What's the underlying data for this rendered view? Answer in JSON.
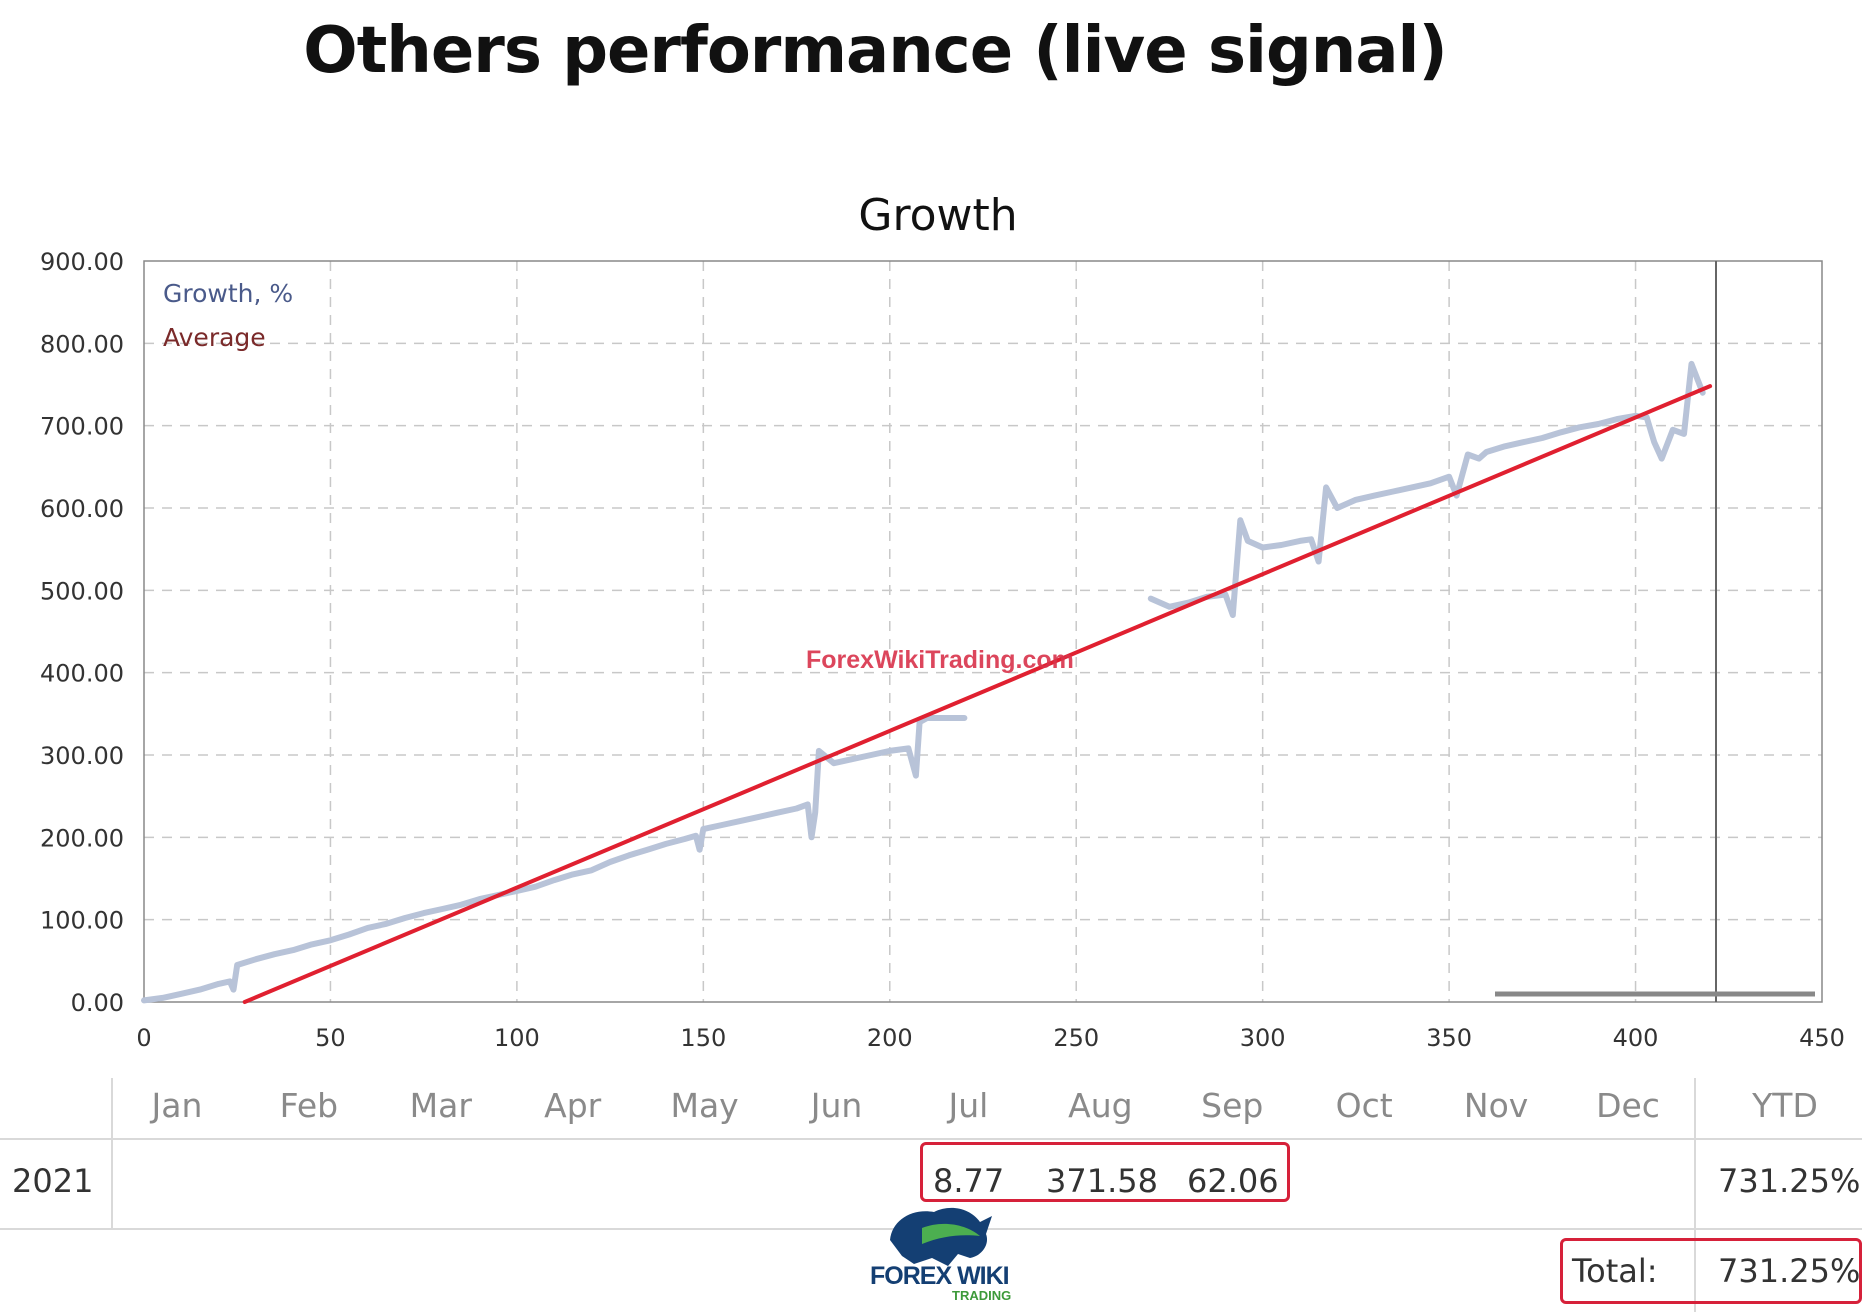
{
  "page_title": "Others performance (live signal)",
  "watermark": "ForexWikiTrading.com",
  "logo": {
    "text": "FOREX WIKI",
    "sub": "TRADING"
  },
  "chart_data": {
    "type": "line",
    "title": "Growth",
    "xlabel": "",
    "ylabel": "",
    "xlim": [
      0,
      450
    ],
    "ylim": [
      0,
      900
    ],
    "x_ticks": [
      "0",
      "50",
      "100",
      "150",
      "200",
      "250",
      "300",
      "350",
      "400",
      "450"
    ],
    "y_ticks": [
      "0.00",
      "100.00",
      "200.00",
      "300.00",
      "400.00",
      "500.00",
      "600.00",
      "700.00",
      "800.00",
      "900.00"
    ],
    "grid": true,
    "legend_position": "top-left",
    "legend": [
      "Growth, %",
      "Average"
    ],
    "colors": {
      "growth": "#b8c3d8",
      "average": "#e02030",
      "legend_growth": "#4a5a8a",
      "legend_average": "#7a2a2a"
    },
    "series": [
      {
        "name": "Growth, %",
        "x": [
          0,
          5,
          10,
          15,
          20,
          23,
          24,
          25,
          30,
          35,
          40,
          45,
          50,
          55,
          60,
          65,
          70,
          75,
          80,
          85,
          90,
          95,
          100,
          105,
          110,
          115,
          120,
          125,
          130,
          135,
          140,
          145,
          148,
          149,
          150,
          155,
          160,
          165,
          170,
          175,
          178,
          179,
          180,
          181,
          185,
          190,
          195,
          200,
          205,
          207,
          208,
          210,
          215,
          220
        ],
        "y": [
          2,
          5,
          10,
          15,
          22,
          25,
          15,
          45,
          52,
          58,
          63,
          70,
          75,
          82,
          90,
          95,
          102,
          108,
          113,
          118,
          125,
          130,
          135,
          140,
          148,
          155,
          160,
          170,
          178,
          185,
          192,
          198,
          202,
          185,
          210,
          215,
          220,
          225,
          230,
          235,
          240,
          200,
          230,
          305,
          290,
          295,
          300,
          305,
          308,
          275,
          340,
          345,
          345,
          345
        ]
      },
      {
        "name": "Growth, %",
        "x": [
          270,
          275,
          280,
          285,
          290,
          292,
          294,
          296,
          300,
          305,
          310,
          313,
          315,
          317,
          320,
          325,
          330,
          335,
          340,
          345,
          350,
          352,
          355,
          358,
          360,
          365,
          370,
          375,
          380,
          385,
          390,
          395,
          400,
          403,
          405,
          407,
          410,
          413,
          415,
          418
        ],
        "y": [
          490,
          480,
          485,
          492,
          495,
          470,
          585,
          560,
          552,
          555,
          560,
          562,
          535,
          625,
          600,
          610,
          615,
          620,
          625,
          630,
          638,
          615,
          665,
          660,
          668,
          675,
          680,
          685,
          692,
          698,
          702,
          708,
          712,
          710,
          680,
          660,
          695,
          690,
          775,
          740
        ]
      },
      {
        "name": "Average",
        "x": [
          27,
          420
        ],
        "y": [
          0,
          748
        ]
      }
    ]
  },
  "table": {
    "months": [
      "Jan",
      "Feb",
      "Mar",
      "Apr",
      "May",
      "Jun",
      "Jul",
      "Aug",
      "Sep",
      "Oct",
      "Nov",
      "Dec"
    ],
    "ytd_label": "YTD",
    "year": "2021",
    "highlight_values": [
      "8.77",
      "371.58",
      "62.06"
    ],
    "ytd_value": "731.25%",
    "total_label": "Total:",
    "total_value": "731.25%"
  }
}
